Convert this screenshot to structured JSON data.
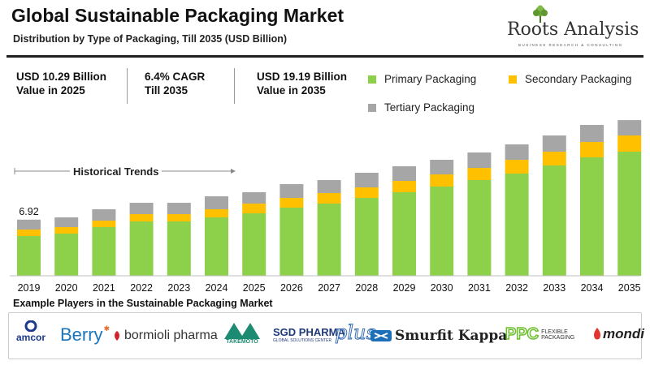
{
  "header": {
    "title": "Global Sustainable Packaging Market",
    "subtitle": "Distribution by Type of Packaging, Till 2035 (USD Billion)"
  },
  "brand": {
    "name": "Roots Analysis",
    "tagline": "BUSINESS RESEARCH & CONSULTING",
    "icon": "tree-icon"
  },
  "stats": [
    {
      "line1": "USD 10.29 Billion",
      "line2": "Value in 2025"
    },
    {
      "line1": "6.4% CAGR",
      "line2": "Till 2035"
    },
    {
      "line1": "USD 19.19 Billion",
      "line2": "Value in 2035"
    }
  ],
  "colors": {
    "primary": "#8dd14a",
    "secondary": "#ffc000",
    "tertiary": "#a6a6a6",
    "axis": "#bfbfbf"
  },
  "chart_data": {
    "type": "bar",
    "stacked": true,
    "title": "Global Sustainable Packaging Market",
    "subtitle": "Distribution by Type of Packaging, Till 2035 (USD Billion)",
    "categories": [
      "2019",
      "2020",
      "2021",
      "2022",
      "2023",
      "2024",
      "2025",
      "2026",
      "2027",
      "2028",
      "2029",
      "2030",
      "2031",
      "2032",
      "2033",
      "2034",
      "2035"
    ],
    "series": [
      {
        "name": "Primary Packaging",
        "color": "#8dd14a",
        "values": [
          4.9,
          5.2,
          6.0,
          6.7,
          6.7,
          7.2,
          7.7,
          8.4,
          8.9,
          9.6,
          10.3,
          11.0,
          11.8,
          12.6,
          13.6,
          14.6,
          15.3
        ]
      },
      {
        "name": "Secondary Packaging",
        "color": "#ffc000",
        "values": [
          0.8,
          0.8,
          0.8,
          0.9,
          0.9,
          1.0,
          1.2,
          1.2,
          1.3,
          1.3,
          1.4,
          1.5,
          1.5,
          1.7,
          1.7,
          1.9,
          2.0
        ]
      },
      {
        "name": "Tertiary Packaging",
        "color": "#a6a6a6",
        "values": [
          1.22,
          1.2,
          1.4,
          1.4,
          1.4,
          1.6,
          1.4,
          1.7,
          1.6,
          1.8,
          1.8,
          1.8,
          1.9,
          1.9,
          2.0,
          2.1,
          1.89
        ]
      }
    ],
    "data_labels": [
      {
        "category": "2019",
        "text": "6.92"
      }
    ],
    "annotation": "Historical Trends",
    "legend": [
      "Primary Packaging",
      "Secondary Packaging",
      "Tertiary Packaging"
    ],
    "legend_position": "top-right",
    "ylim": [
      0,
      20
    ],
    "xlabel": "",
    "ylabel": "",
    "grid": false
  },
  "players": {
    "title": "Example Players in the Sustainable Packaging Market",
    "logos": [
      {
        "text": "amcor",
        "color": "#1b3a8c"
      },
      {
        "text": "Berry",
        "color": "#1a75bb"
      },
      {
        "text": "bormioli pharma",
        "color": "#333333"
      },
      {
        "text": "TAKEMOTO",
        "color": "#1d8a72"
      },
      {
        "text": "SGD PHARMA",
        "sub": "GLOBAL SOLUTIONS CENTER",
        "color": "#1f3a7a"
      },
      {
        "text": "plus",
        "color": "#3a6fb5"
      },
      {
        "text": "Smurfit Kappa",
        "color": "#222222"
      },
      {
        "text": "PPC",
        "sub1": "FLEXIBLE",
        "sub2": "PACKAGING",
        "color": "#6bbf2a"
      },
      {
        "text": "mondi",
        "color": "#222222"
      }
    ]
  }
}
